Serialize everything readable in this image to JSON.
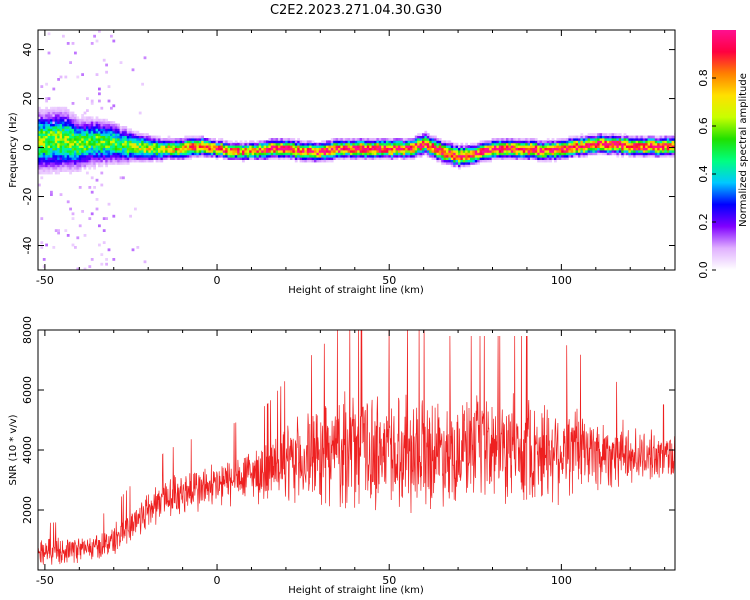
{
  "title": "C2E2.2023.271.04.30.G30",
  "chart_data": [
    {
      "type": "heatmap",
      "xlabel": "Height of straight line (km)",
      "ylabel": "Frequency (Hz)",
      "xlim": [
        -52,
        133
      ],
      "ylim": [
        -50,
        48
      ],
      "xticks": [
        -50,
        0,
        50,
        100
      ],
      "yticks": [
        -40,
        -20,
        0,
        20,
        40
      ],
      "colorbar": {
        "label": "Normalized spectral amplitude",
        "range": [
          0,
          1
        ],
        "ticks": [
          0.0,
          0.2,
          0.4,
          0.6,
          0.8
        ],
        "colors": [
          "#ffffff",
          "#e0b0ff",
          "#8000ff",
          "#0000ff",
          "#00c8ff",
          "#00ff80",
          "#20e000",
          "#c8ff00",
          "#ffe000",
          "#ff8000",
          "#ff0040",
          "#ff1090"
        ]
      },
      "ridge": {
        "x": [
          -52,
          -45,
          -40,
          -35,
          -30,
          -25,
          -20,
          -15,
          -10,
          -5,
          0,
          5,
          10,
          15,
          20,
          25,
          30,
          35,
          40,
          45,
          50,
          55,
          60,
          65,
          70,
          75,
          80,
          85,
          90,
          95,
          100,
          105,
          110,
          115,
          120,
          125,
          133
        ],
        "freq": [
          3,
          4,
          2,
          3,
          2,
          1,
          0,
          0,
          0,
          1,
          0,
          -1,
          -1,
          0,
          0,
          -1,
          -1,
          0,
          0,
          0,
          0,
          0,
          2,
          -1,
          -3,
          -2,
          0,
          0,
          0,
          -1,
          0,
          1,
          2,
          2,
          1,
          1,
          1
        ],
        "width": [
          6,
          6,
          5,
          4.5,
          4,
          3,
          2.5,
          2,
          2,
          1.8,
          1.6,
          1.6,
          1.6,
          1.8,
          1.8,
          1.8,
          1.8,
          1.8,
          1.8,
          1.8,
          1.8,
          1.8,
          2,
          2,
          2,
          1.8,
          1.8,
          1.8,
          1.8,
          1.8,
          1.8,
          1.8,
          1.8,
          1.8,
          1.8,
          1.8,
          1.8
        ],
        "peak": [
          0.6,
          0.6,
          0.55,
          0.55,
          0.55,
          0.6,
          0.65,
          0.7,
          0.8,
          0.9,
          0.95,
          0.9,
          0.9,
          0.95,
          0.95,
          0.9,
          0.95,
          1,
          1,
          1,
          1,
          0.95,
          0.9,
          0.95,
          0.95,
          0.95,
          1,
          1,
          1,
          0.95,
          1,
          1,
          1,
          1,
          0.95,
          0.95,
          0.95
        ]
      }
    },
    {
      "type": "line",
      "xlabel": "Height of straight line (km)",
      "ylabel": "SNR (10 * v/v)",
      "xlim": [
        -52,
        133
      ],
      "ylim": [
        0,
        8000
      ],
      "xticks": [
        -50,
        0,
        50,
        100
      ],
      "yticks": [
        2000,
        4000,
        6000,
        8000
      ],
      "color": "#ee2020",
      "series": [
        {
          "x": [
            -52,
            -45,
            -40,
            -35,
            -30,
            -25,
            -20,
            -15,
            -10,
            -5,
            0,
            5,
            10,
            15,
            20,
            25,
            30,
            35,
            40,
            45,
            50,
            55,
            60,
            65,
            70,
            75,
            80,
            85,
            90,
            95,
            100,
            105,
            110,
            115,
            120,
            125,
            133
          ],
          "mean": [
            600,
            650,
            700,
            750,
            1000,
            1500,
            2000,
            2400,
            2600,
            2700,
            2800,
            3000,
            3200,
            3300,
            3500,
            3700,
            3800,
            4000,
            4000,
            4000,
            4000,
            4000,
            4000,
            4000,
            4000,
            4000,
            4000,
            4000,
            4000,
            4000,
            4000,
            4000,
            3900,
            3900,
            3800,
            3800,
            3800
          ],
          "amp": [
            500,
            500,
            500,
            500,
            600,
            700,
            800,
            800,
            900,
            900,
            900,
            1000,
            1000,
            1200,
            1500,
            1700,
            1900,
            2100,
            2200,
            2200,
            2200,
            2200,
            2200,
            2000,
            2000,
            2000,
            2000,
            2000,
            2000,
            2000,
            1900,
            1700,
            1500,
            1300,
            1100,
            900,
            900
          ]
        }
      ]
    }
  ]
}
